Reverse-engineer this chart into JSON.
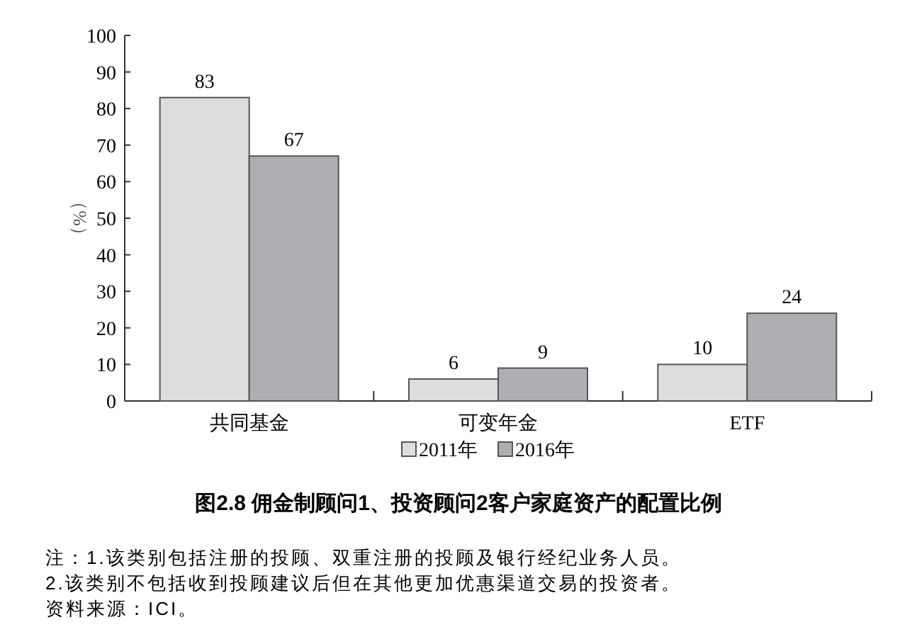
{
  "chart_data": {
    "type": "bar",
    "title": "图2.8 佣金制顾问1、投资顾问2客户家庭资产的配置比例",
    "ylabel": "（%）",
    "categories": [
      "共同基金",
      "可变年金",
      "ETF"
    ],
    "series": [
      {
        "name": "2011年",
        "color": "#dcdddf",
        "values": [
          83,
          6,
          10
        ]
      },
      {
        "name": "2016年",
        "color": "#aeafb3",
        "values": [
          67,
          9,
          24
        ]
      }
    ],
    "ylim": [
      0,
      100
    ],
    "yticks": [
      0,
      10,
      20,
      30,
      40,
      50,
      60,
      70,
      80,
      90,
      100
    ],
    "data_labels": true,
    "legend": "bottom",
    "grid": false,
    "annotations": [
      "注：1.该类别包括注册的投顾、双重注册的投顾及银行经纪业务人员。",
      "2.该类别不包括收到投顾建议后但在其他更加优惠渠道交易的投资者。",
      "资料来源：ICI。"
    ]
  }
}
